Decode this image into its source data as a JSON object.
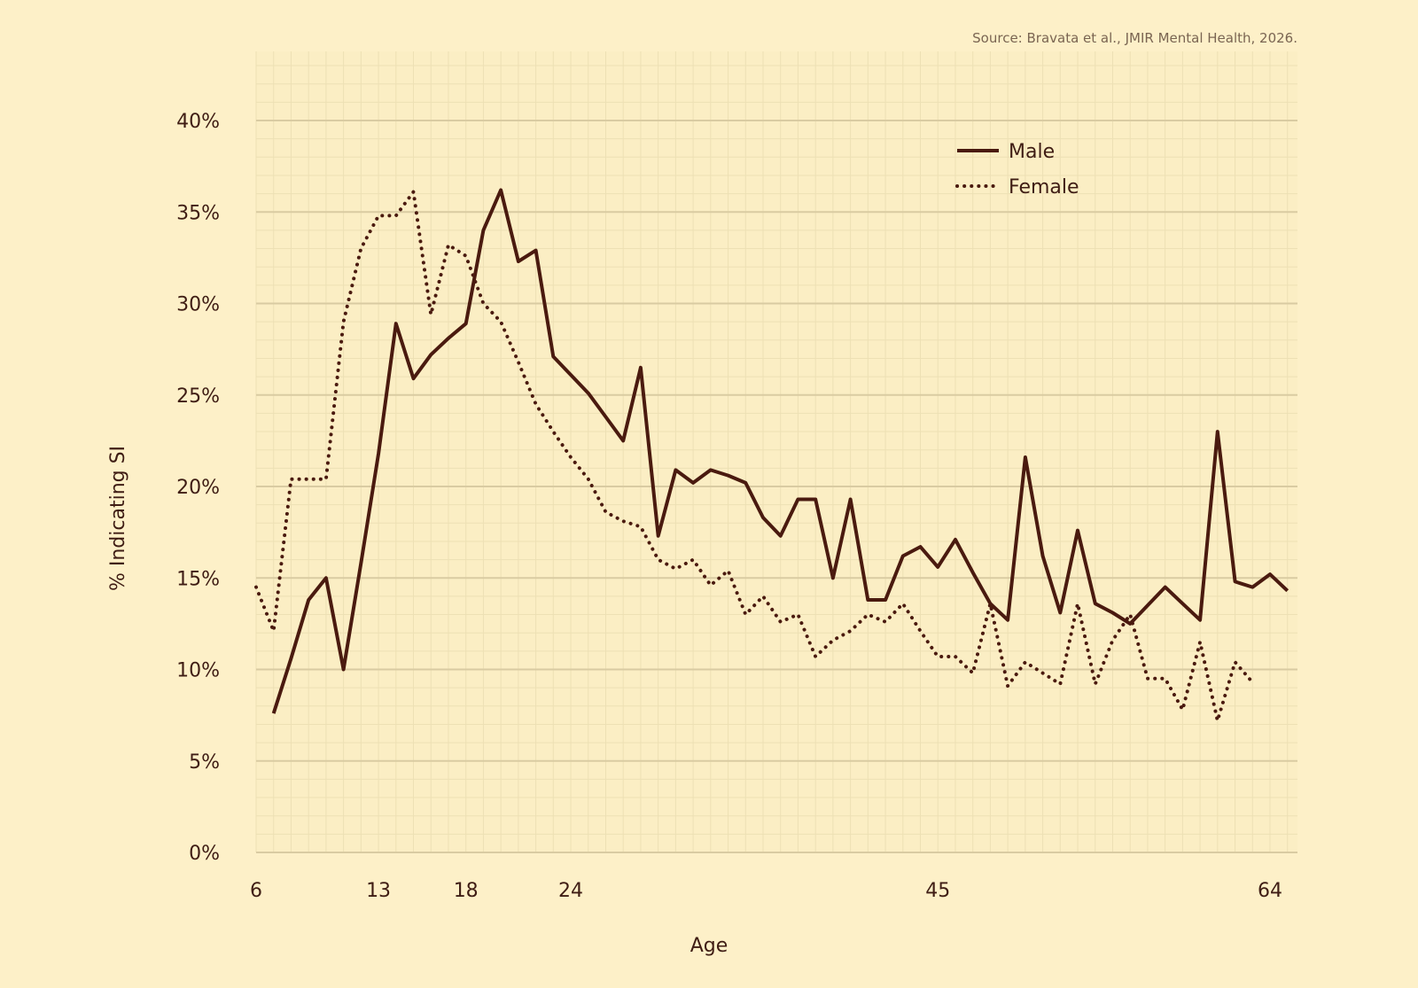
{
  "source_note": "Source: Bravata et al., JMIR Mental Health, 2026.",
  "colors": {
    "background": "#fdf0c8",
    "line": "#4a1a0f",
    "grid_major": "#d9cba2",
    "grid_minor": "#ede0b4"
  },
  "chart_data": {
    "type": "line",
    "title": "",
    "xlabel": "Age",
    "ylabel": "% Indicating SI",
    "xlim": [
      6,
      65
    ],
    "ylim": [
      0,
      45
    ],
    "x_ticks": [
      6,
      13,
      18,
      24,
      45,
      64
    ],
    "y_ticks": [
      0,
      5,
      10,
      15,
      20,
      25,
      30,
      35,
      40
    ],
    "y_tick_format": "percent",
    "grid": true,
    "legend_position": "top-right",
    "series": [
      {
        "name": "Male",
        "style": "solid",
        "points": [
          [
            7,
            7.6
          ],
          [
            8,
            10.6
          ],
          [
            9,
            13.8
          ],
          [
            10,
            15.0
          ],
          [
            11,
            10.0
          ],
          [
            12,
            15.8
          ],
          [
            13,
            21.8
          ],
          [
            14,
            28.9
          ],
          [
            15,
            25.9
          ],
          [
            16,
            27.2
          ],
          [
            17,
            28.1
          ],
          [
            18,
            28.9
          ],
          [
            19,
            34.0
          ],
          [
            20,
            36.2
          ],
          [
            21,
            32.3
          ],
          [
            22,
            32.9
          ],
          [
            23,
            27.1
          ],
          [
            24,
            26.1
          ],
          [
            25,
            25.1
          ],
          [
            26,
            23.8
          ],
          [
            27,
            22.5
          ],
          [
            28,
            26.5
          ],
          [
            29,
            17.3
          ],
          [
            30,
            20.9
          ],
          [
            31,
            20.2
          ],
          [
            32,
            20.9
          ],
          [
            33,
            20.6
          ],
          [
            34,
            20.2
          ],
          [
            35,
            18.3
          ],
          [
            36,
            17.3
          ],
          [
            37,
            19.3
          ],
          [
            38,
            19.3
          ],
          [
            39,
            15.0
          ],
          [
            40,
            19.3
          ],
          [
            41,
            13.8
          ],
          [
            42,
            13.8
          ],
          [
            43,
            16.2
          ],
          [
            44,
            16.7
          ],
          [
            45,
            15.6
          ],
          [
            46,
            17.1
          ],
          [
            47,
            15.3
          ],
          [
            48,
            13.6
          ],
          [
            49,
            12.7
          ],
          [
            50,
            21.6
          ],
          [
            51,
            16.2
          ],
          [
            52,
            13.1
          ],
          [
            53,
            17.6
          ],
          [
            54,
            13.6
          ],
          [
            55,
            13.1
          ],
          [
            56,
            12.5
          ],
          [
            57,
            13.5
          ],
          [
            58,
            14.5
          ],
          [
            59,
            13.6
          ],
          [
            60,
            12.7
          ],
          [
            61,
            23.0
          ],
          [
            62,
            14.8
          ],
          [
            63,
            14.5
          ],
          [
            64,
            15.2
          ],
          [
            65,
            14.3
          ]
        ]
      },
      {
        "name": "Female",
        "style": "dotted",
        "points": [
          [
            6,
            14.5
          ],
          [
            7,
            12.1
          ],
          [
            8,
            20.4
          ],
          [
            9,
            20.4
          ],
          [
            10,
            20.4
          ],
          [
            11,
            29.0
          ],
          [
            12,
            33.0
          ],
          [
            13,
            34.8
          ],
          [
            14,
            34.8
          ],
          [
            15,
            36.1
          ],
          [
            16,
            29.4
          ],
          [
            17,
            33.2
          ],
          [
            18,
            32.6
          ],
          [
            19,
            30.0
          ],
          [
            20,
            29.0
          ],
          [
            21,
            26.8
          ],
          [
            22,
            24.5
          ],
          [
            23,
            23.0
          ],
          [
            24,
            21.6
          ],
          [
            25,
            20.4
          ],
          [
            26,
            18.6
          ],
          [
            27,
            18.1
          ],
          [
            28,
            17.8
          ],
          [
            29,
            16.0
          ],
          [
            30,
            15.5
          ],
          [
            31,
            16.0
          ],
          [
            32,
            14.6
          ],
          [
            33,
            15.4
          ],
          [
            34,
            13.0
          ],
          [
            35,
            14.0
          ],
          [
            36,
            12.6
          ],
          [
            37,
            13.0
          ],
          [
            38,
            10.7
          ],
          [
            39,
            11.6
          ],
          [
            40,
            12.1
          ],
          [
            41,
            13.0
          ],
          [
            42,
            12.6
          ],
          [
            43,
            13.6
          ],
          [
            44,
            12.1
          ],
          [
            45,
            10.7
          ],
          [
            46,
            10.7
          ],
          [
            47,
            9.8
          ],
          [
            48,
            13.6
          ],
          [
            49,
            9.1
          ],
          [
            50,
            10.4
          ],
          [
            51,
            9.8
          ],
          [
            52,
            9.2
          ],
          [
            53,
            13.6
          ],
          [
            54,
            9.2
          ],
          [
            55,
            11.6
          ],
          [
            56,
            13.0
          ],
          [
            57,
            9.5
          ],
          [
            58,
            9.5
          ],
          [
            59,
            7.8
          ],
          [
            60,
            11.5
          ],
          [
            61,
            7.2
          ],
          [
            62,
            10.4
          ],
          [
            63,
            9.3
          ]
        ]
      }
    ]
  }
}
